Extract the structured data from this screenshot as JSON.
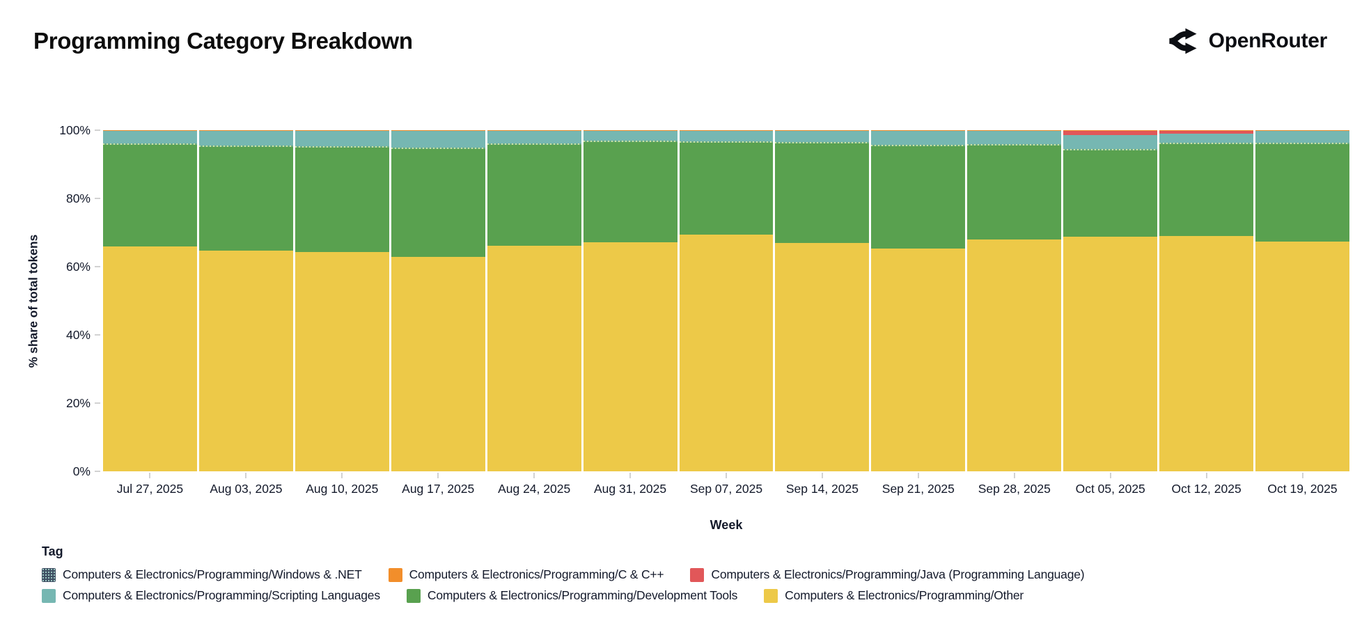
{
  "header": {
    "title": "Programming Category Breakdown",
    "brand": "OpenRouter"
  },
  "chart_data": {
    "type": "bar",
    "stacked": true,
    "title": "Programming Category Breakdown",
    "xlabel": "Week",
    "ylabel": "% share of total tokens",
    "ylim": [
      0,
      100
    ],
    "yticks": [
      "0%",
      "20%",
      "40%",
      "60%",
      "80%",
      "100%"
    ],
    "grid": false,
    "legend_position": "bottom",
    "categories": [
      "Jul 27, 2025",
      "Aug 03, 2025",
      "Aug 10, 2025",
      "Aug 17, 2025",
      "Aug 24, 2025",
      "Aug 31, 2025",
      "Sep 07, 2025",
      "Sep 14, 2025",
      "Sep 21, 2025",
      "Sep 28, 2025",
      "Oct 05, 2025",
      "Oct 12, 2025",
      "Oct 19, 2025"
    ],
    "stack_order_top_to_bottom": [
      "cpp",
      "java",
      "scripting",
      "windows",
      "devtools",
      "other"
    ],
    "series": [
      {
        "key": "windows",
        "name": "Computers & Electronics/Programming/Windows & .NET",
        "color": "#3f4f63",
        "pattern": true,
        "values": [
          0.15,
          0.15,
          0.15,
          0.15,
          0.15,
          0.15,
          0.15,
          0.15,
          0.15,
          0.15,
          0.15,
          0.15,
          0.15
        ]
      },
      {
        "key": "cpp",
        "name": "Computers & Electronics/Programming/C & C++",
        "color": "#f28e2b",
        "pattern": false,
        "values": [
          0.3,
          0.3,
          0.3,
          0.3,
          0.3,
          0.3,
          0.3,
          0.3,
          0.3,
          0.3,
          0.2,
          0.2,
          0.3
        ]
      },
      {
        "key": "java",
        "name": "Computers & Electronics/Programming/Java (Programming Language)",
        "color": "#e15759",
        "pattern": false,
        "values": [
          0,
          0,
          0,
          0,
          0,
          0,
          0,
          0,
          0,
          0,
          1.3,
          0.8,
          0
        ]
      },
      {
        "key": "scripting",
        "name": "Computers & Electronics/Programming/Scripting Languages",
        "color": "#76b7b2",
        "pattern": false,
        "values": [
          3.65,
          4.25,
          4.45,
          4.75,
          3.55,
          2.75,
          2.95,
          3.15,
          3.95,
          3.75,
          4.05,
          2.65,
          3.35
        ]
      },
      {
        "key": "devtools",
        "name": "Computers & Electronics/Programming/Development Tools",
        "color": "#59a14f",
        "pattern": false,
        "values": [
          29.9,
          30.5,
          30.6,
          31.8,
          29.8,
          29.5,
          27.1,
          29.3,
          30.1,
          27.6,
          25.3,
          27.0,
          28.7
        ]
      },
      {
        "key": "other",
        "name": "Computers & Electronics/Programming/Other",
        "color": "#edc948",
        "pattern": false,
        "values": [
          66.0,
          64.8,
          64.5,
          63.0,
          66.2,
          67.3,
          69.5,
          67.1,
          65.5,
          68.2,
          69.0,
          69.2,
          67.5
        ]
      }
    ]
  },
  "legend": {
    "title": "Tag",
    "rows": [
      [
        "windows",
        "cpp",
        "java"
      ],
      [
        "scripting",
        "devtools",
        "other"
      ]
    ]
  }
}
